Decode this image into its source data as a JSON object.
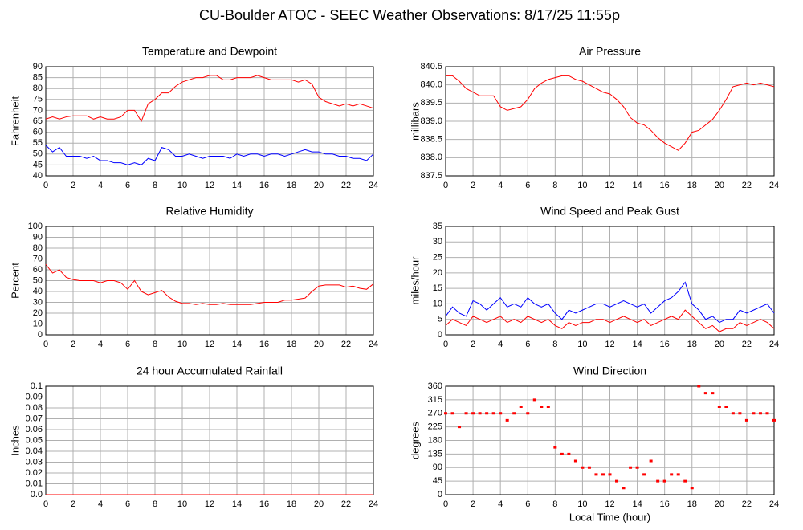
{
  "title": "CU-Boulder ATOC - SEEC Weather Observations: 8/17/25 11:55p",
  "chart_data": [
    {
      "type": "line",
      "title": "Temperature and Dewpoint",
      "ylabel": "Fahrenheit",
      "grid": true,
      "xlim": [
        0,
        24
      ],
      "xticks": [
        0,
        2,
        4,
        6,
        8,
        10,
        12,
        14,
        16,
        18,
        20,
        22,
        24
      ],
      "ylim": [
        40,
        90
      ],
      "yticks": [
        40,
        45,
        50,
        55,
        60,
        65,
        70,
        75,
        80,
        85,
        90
      ],
      "x": [
        0,
        0.5,
        1,
        1.5,
        2,
        2.5,
        3,
        3.5,
        4,
        4.5,
        5,
        5.5,
        6,
        6.5,
        7,
        7.5,
        8,
        8.5,
        9,
        9.5,
        10,
        10.5,
        11,
        11.5,
        12,
        12.5,
        13,
        13.5,
        14,
        14.5,
        15,
        15.5,
        16,
        16.5,
        17,
        17.5,
        18,
        18.5,
        19,
        19.5,
        20,
        20.5,
        21,
        21.5,
        22,
        22.5,
        23,
        23.5,
        24
      ],
      "series": [
        {
          "color": "#ff0000",
          "values": [
            66,
            67,
            66,
            67,
            67.5,
            67.5,
            67.5,
            66,
            67,
            66,
            66,
            67,
            70,
            70,
            65,
            73,
            75,
            78,
            78,
            81,
            83,
            84,
            85,
            85,
            86,
            86,
            84,
            84,
            85,
            85,
            85,
            86,
            85,
            84,
            84,
            84,
            84,
            83,
            84,
            82,
            76,
            74,
            73,
            72,
            73,
            72,
            73,
            72,
            71
          ]
        },
        {
          "color": "#0000ff",
          "values": [
            54,
            51,
            53,
            49,
            49,
            49,
            48,
            49,
            47,
            47,
            46,
            46,
            45,
            46,
            45,
            48,
            47,
            53,
            52,
            49,
            49,
            50,
            49,
            48,
            49,
            49,
            49,
            48,
            50,
            49,
            50,
            50,
            49,
            50,
            50,
            49,
            50,
            51,
            52,
            51,
            51,
            50,
            50,
            49,
            49,
            48,
            48,
            47,
            50
          ]
        }
      ]
    },
    {
      "type": "line",
      "title": "Air Pressure",
      "ylabel": "millibars",
      "grid": true,
      "xlim": [
        0,
        24
      ],
      "xticks": [
        0,
        2,
        4,
        6,
        8,
        10,
        12,
        14,
        16,
        18,
        20,
        22,
        24
      ],
      "ylim": [
        837.5,
        840.5
      ],
      "yticks": [
        837.5,
        {
          "value": 838,
          "label": "838.0"
        },
        838.5,
        {
          "value": 839,
          "label": "839.0"
        },
        839.5,
        {
          "value": 840,
          "label": "840.0"
        },
        840.5
      ],
      "x": [
        0,
        0.5,
        1,
        1.5,
        2,
        2.5,
        3,
        3.5,
        4,
        4.5,
        5,
        5.5,
        6,
        6.5,
        7,
        7.5,
        8,
        8.5,
        9,
        9.5,
        10,
        10.5,
        11,
        11.5,
        12,
        12.5,
        13,
        13.5,
        14,
        14.5,
        15,
        15.5,
        16,
        16.5,
        17,
        17.5,
        18,
        18.5,
        19,
        19.5,
        20,
        20.5,
        21,
        21.5,
        22,
        22.5,
        23,
        23.5,
        24
      ],
      "series": [
        {
          "color": "#ff0000",
          "values": [
            840.25,
            840.25,
            840.1,
            839.9,
            839.8,
            839.7,
            839.7,
            839.7,
            839.4,
            839.3,
            839.35,
            839.4,
            839.6,
            839.9,
            840.05,
            840.15,
            840.2,
            840.25,
            840.25,
            840.15,
            840.1,
            840.0,
            839.9,
            839.8,
            839.75,
            839.6,
            839.4,
            839.1,
            838.95,
            838.9,
            838.75,
            838.55,
            838.4,
            838.3,
            838.2,
            838.4,
            838.7,
            838.75,
            838.9,
            839.05,
            839.3,
            839.6,
            839.95,
            840.0,
            840.05,
            840.0,
            840.05,
            840.0,
            839.95
          ]
        }
      ]
    },
    {
      "type": "line",
      "title": "Relative Humidity",
      "ylabel": "Percent",
      "grid": true,
      "xlim": [
        0,
        24
      ],
      "xticks": [
        0,
        2,
        4,
        6,
        8,
        10,
        12,
        14,
        16,
        18,
        20,
        22,
        24
      ],
      "ylim": [
        0,
        100
      ],
      "yticks": [
        0,
        10,
        20,
        30,
        40,
        50,
        60,
        70,
        80,
        90,
        100
      ],
      "x": [
        0,
        0.5,
        1,
        1.5,
        2,
        2.5,
        3,
        3.5,
        4,
        4.5,
        5,
        5.5,
        6,
        6.5,
        7,
        7.5,
        8,
        8.5,
        9,
        9.5,
        10,
        10.5,
        11,
        11.5,
        12,
        12.5,
        13,
        13.5,
        14,
        14.5,
        15,
        15.5,
        16,
        16.5,
        17,
        17.5,
        18,
        18.5,
        19,
        19.5,
        20,
        20.5,
        21,
        21.5,
        22,
        22.5,
        23,
        23.5,
        24
      ],
      "series": [
        {
          "color": "#ff0000",
          "values": [
            65,
            57,
            60,
            53,
            51,
            50,
            50,
            50,
            48,
            50,
            50,
            48,
            42,
            50,
            40,
            37,
            39,
            41,
            35,
            31,
            29,
            29,
            28,
            29,
            28,
            28,
            29,
            28,
            28,
            28,
            28,
            29,
            30,
            30,
            30,
            32,
            32,
            33,
            34,
            40,
            45,
            46,
            46,
            46,
            44,
            45,
            43,
            42,
            47
          ]
        }
      ]
    },
    {
      "type": "line",
      "title": "Wind Speed and Peak Gust",
      "ylabel": "miles/hour",
      "grid": true,
      "xlim": [
        0,
        24
      ],
      "xticks": [
        0,
        2,
        4,
        6,
        8,
        10,
        12,
        14,
        16,
        18,
        20,
        22,
        24
      ],
      "ylim": [
        0,
        35
      ],
      "yticks": [
        0,
        5,
        10,
        15,
        20,
        25,
        30,
        35
      ],
      "x": [
        0,
        0.5,
        1,
        1.5,
        2,
        2.5,
        3,
        3.5,
        4,
        4.5,
        5,
        5.5,
        6,
        6.5,
        7,
        7.5,
        8,
        8.5,
        9,
        9.5,
        10,
        10.5,
        11,
        11.5,
        12,
        12.5,
        13,
        13.5,
        14,
        14.5,
        15,
        15.5,
        16,
        16.5,
        17,
        17.5,
        18,
        18.5,
        19,
        19.5,
        20,
        20.5,
        21,
        21.5,
        22,
        22.5,
        23,
        23.5,
        24
      ],
      "series": [
        {
          "color": "#0000ff",
          "values": [
            6,
            9,
            7,
            6,
            11,
            10,
            8,
            10,
            12,
            9,
            10,
            9,
            12,
            10,
            9,
            10,
            7,
            5,
            8,
            7,
            8,
            9,
            10,
            10,
            9,
            10,
            11,
            10,
            9,
            10,
            7,
            9,
            11,
            12,
            14,
            17,
            10,
            8,
            5,
            6,
            4,
            5,
            5,
            8,
            7,
            8,
            9,
            10,
            7
          ]
        },
        {
          "color": "#ff0000",
          "values": [
            3,
            5,
            4,
            3,
            6,
            5,
            4,
            5,
            6,
            4,
            5,
            4,
            6,
            5,
            4,
            5,
            3,
            2,
            4,
            3,
            4,
            4,
            5,
            5,
            4,
            5,
            6,
            5,
            4,
            5,
            3,
            4,
            5,
            6,
            5,
            8,
            6,
            4,
            2,
            3,
            1,
            2,
            2,
            4,
            3,
            4,
            5,
            4,
            2
          ]
        }
      ]
    },
    {
      "type": "line",
      "title": "24 hour Accumulated Rainfall",
      "ylabel": "Inches",
      "grid": true,
      "xlim": [
        0,
        24
      ],
      "xticks": [
        0,
        2,
        4,
        6,
        8,
        10,
        12,
        14,
        16,
        18,
        20,
        22,
        24
      ],
      "ylim": [
        0,
        0.1
      ],
      "yticks": [
        {
          "value": 0,
          "label": "0.0"
        },
        0.01,
        0.02,
        0.03,
        0.04,
        0.05,
        0.06,
        0.07,
        0.08,
        0.09,
        0.1
      ],
      "x": [
        0,
        24
      ],
      "series": [
        {
          "color": "#ff0000",
          "values": [
            0,
            0
          ]
        }
      ]
    },
    {
      "type": "scatter",
      "title": "Wind Direction",
      "ylabel": "degrees",
      "xlabel": "Local Time (hour)",
      "grid": true,
      "xlim": [
        0,
        24
      ],
      "xticks": [
        0,
        2,
        4,
        6,
        8,
        10,
        12,
        14,
        16,
        18,
        20,
        22,
        24
      ],
      "ylim": [
        0,
        360
      ],
      "yticks": [
        0,
        45,
        90,
        135,
        180,
        225,
        270,
        315,
        360
      ],
      "x": [
        0,
        0.5,
        1,
        1.5,
        2,
        2.5,
        3,
        3.5,
        4,
        4.5,
        5,
        5.5,
        6,
        6.5,
        7,
        7.5,
        8,
        8.5,
        9,
        9.5,
        10,
        10.5,
        11,
        11.5,
        12,
        12.5,
        13,
        13.5,
        14,
        14.5,
        15,
        15.5,
        16,
        16.5,
        17,
        17.5,
        18,
        18.5,
        19,
        19.5,
        20,
        20.5,
        21,
        21.5,
        22,
        22.5,
        23,
        23.5,
        24
      ],
      "series": [
        {
          "color": "#ff0000",
          "values": [
            270,
            270,
            225,
            270,
            270,
            270,
            270,
            270,
            270,
            247,
            270,
            292,
            270,
            315,
            292,
            292,
            157,
            135,
            135,
            112,
            90,
            90,
            67,
            67,
            67,
            45,
            22,
            90,
            90,
            67,
            112,
            45,
            45,
            67,
            67,
            45,
            22,
            360,
            337,
            337,
            292,
            292,
            270,
            270,
            247,
            270,
            270,
            270,
            247
          ]
        }
      ]
    }
  ]
}
